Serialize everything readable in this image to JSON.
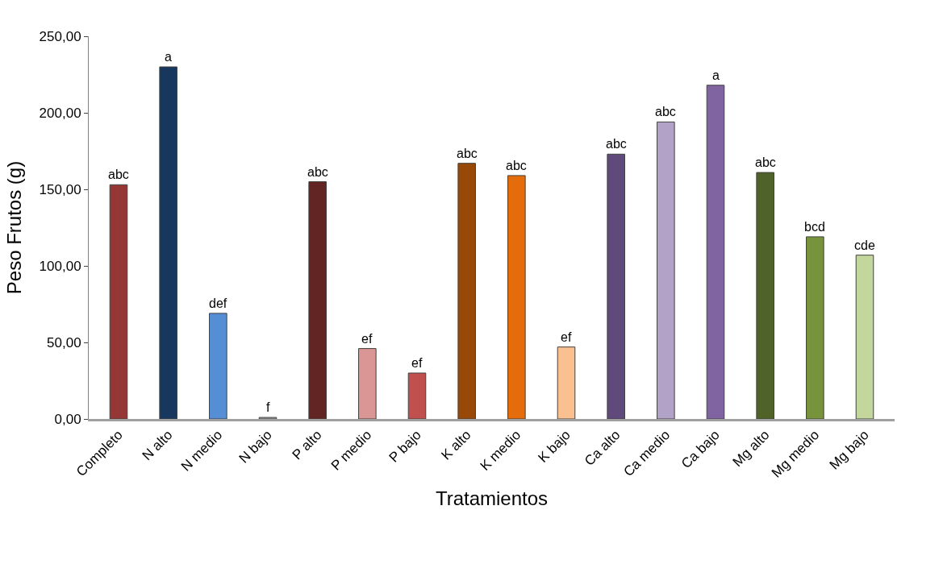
{
  "chart_data": {
    "type": "bar",
    "xlabel": "Tratamientos",
    "ylabel": "Peso Frutos (g)",
    "categories": [
      "Completo",
      "N alto",
      "N medio",
      "N bajo",
      "P alto",
      "P medio",
      "P bajo",
      "K alto",
      "K medio",
      "K bajo",
      "Ca alto",
      "Ca medio",
      "Ca bajo",
      "Mg alto",
      "Mg medio",
      "Mg bajo"
    ],
    "values": [
      153,
      230,
      69,
      1,
      155,
      46,
      30,
      167,
      159,
      47,
      173,
      194,
      218,
      161,
      119,
      107
    ],
    "colors": [
      "#953735",
      "#17375e",
      "#558ed5",
      "#a6a6a6",
      "#632523",
      "#d99694",
      "#c0504d",
      "#984807",
      "#e46c0a",
      "#fac090",
      "#604a7b",
      "#b3a2c7",
      "#8064a2",
      "#4f6228",
      "#77933c",
      "#c3d69b"
    ],
    "ylim": [
      0,
      250
    ],
    "yticks": [
      {
        "value": 0,
        "label": "0,00"
      },
      {
        "value": 50,
        "label": "50,00"
      },
      {
        "value": 100,
        "label": "100,00"
      },
      {
        "value": 150,
        "label": "150,00"
      },
      {
        "value": 200,
        "label": "200,00"
      },
      {
        "value": 250,
        "label": "250,00"
      }
    ],
    "annotations": [
      {
        "text": "abc",
        "x": "Completo",
        "y": 153
      },
      {
        "text": "a",
        "x": "N alto",
        "y": 230
      },
      {
        "text": "def",
        "x": "N medio",
        "y": 69
      },
      {
        "text": "f",
        "x": "N bajo",
        "y": 1
      },
      {
        "text": "abc",
        "x": "P alto",
        "y": 155
      },
      {
        "text": "ef",
        "x": "P medio",
        "y": 46
      },
      {
        "text": "ef",
        "x": "P bajo",
        "y": 30
      },
      {
        "text": "abc",
        "x": "K alto",
        "y": 167
      },
      {
        "text": "abc",
        "x": "K medio",
        "y": 159
      },
      {
        "text": "ef",
        "x": "K bajo",
        "y": 47
      },
      {
        "text": "abc",
        "x": "Ca alto",
        "y": 173
      },
      {
        "text": "abc",
        "x": "Ca medio",
        "y": 194
      },
      {
        "text": "a",
        "x": "Ca bajo",
        "y": 218
      },
      {
        "text": "abc",
        "x": "Mg alto",
        "y": 161
      },
      {
        "text": "bcd",
        "x": "Mg medio",
        "y": 119
      },
      {
        "text": "cde",
        "x": "Mg bajo",
        "y": 107
      }
    ]
  }
}
